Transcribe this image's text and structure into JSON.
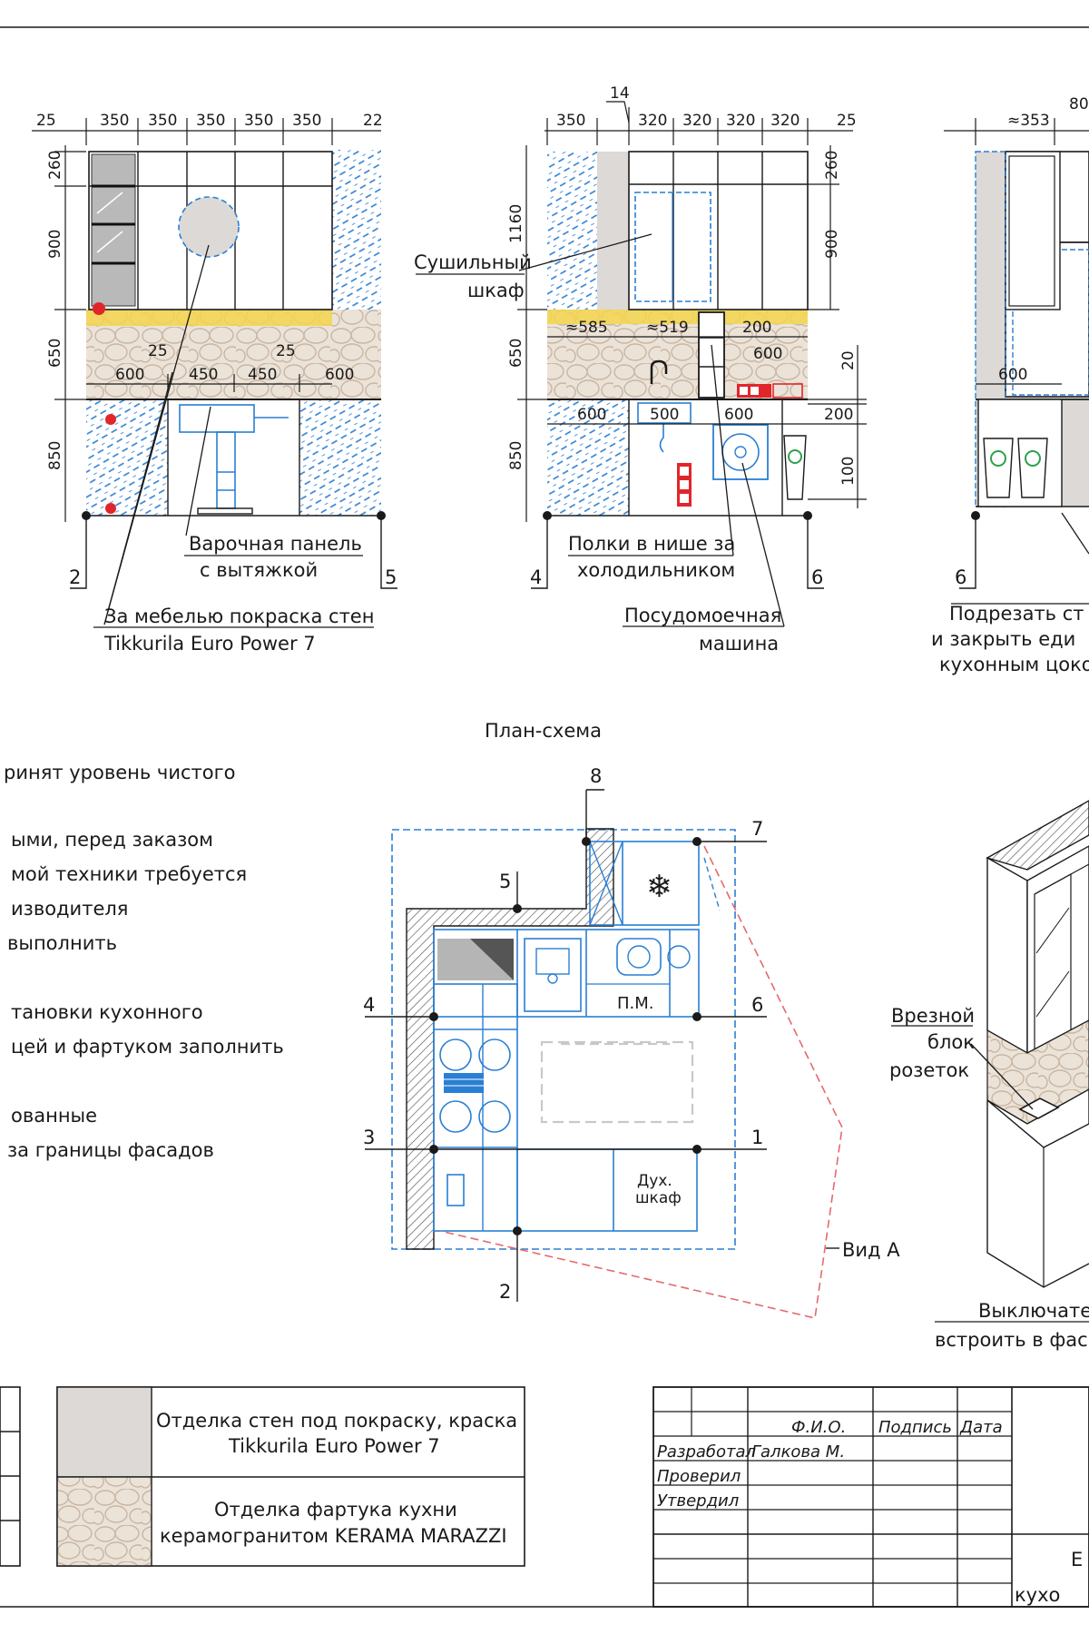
{
  "elevations": {
    "left": {
      "top_dims": [
        "25",
        "350",
        "350",
        "350",
        "350",
        "350",
        "22"
      ],
      "vert_dims": [
        "260",
        "900",
        "650",
        "850"
      ],
      "mid_dims_top": [
        "25",
        "25"
      ],
      "mid_dims": [
        "600",
        "450",
        "450",
        "600"
      ],
      "axis_left": "2",
      "axis_right": "5",
      "note_hob": [
        "Варочная панель",
        "с вытяжкой"
      ],
      "note_paint": [
        "За мебелью покраска стен",
        "Tikkurila Euro Power 7"
      ]
    },
    "middle": {
      "top_small": "14",
      "top_dims": [
        "350",
        "320",
        "320",
        "320",
        "320",
        "25"
      ],
      "left_vert": "1160",
      "vert_dims": [
        "650",
        "850"
      ],
      "right_vert": [
        "260",
        "900",
        "20",
        "100"
      ],
      "apron_dims": [
        "≈585",
        "≈519",
        "200",
        "600"
      ],
      "lower_dims": [
        "600",
        "500",
        "600",
        "200"
      ],
      "axis_left": "4",
      "axis_right": "6",
      "note_dryer": [
        "Сушильный",
        "шкаф"
      ],
      "note_shelves": [
        "Полки в нише за",
        "холодильником"
      ],
      "note_dishwasher": [
        "Посудомоечная",
        "машина"
      ]
    },
    "right": {
      "top_dims": [
        "≈353",
        "80"
      ],
      "lower_dim": "600",
      "axis_left": "6",
      "note_plinth": [
        "Подрезать ст",
        "и закрыть еди",
        "кухонным цоко"
      ]
    }
  },
  "plan": {
    "title": "План-схема",
    "axes": [
      "8",
      "7",
      "5",
      "4",
      "6",
      "3",
      "1",
      "2"
    ],
    "label_dw": "П.М.",
    "label_oven": [
      "Дух.",
      "шкаф"
    ],
    "view_label": "Вид А"
  },
  "notes": {
    "lines": [
      "ринят уровень чистого",
      "ыми, перед заказом",
      "мой техники требуется",
      "изводителя",
      "выполнить",
      "тановки кухонного",
      "цей и фартуком заполнить",
      "ованные",
      "за границы фасадов"
    ]
  },
  "iso": {
    "note_socket": [
      "Врезной",
      "блок",
      "розеток"
    ],
    "note_switch": [
      "Выключате",
      "встроить в фас"
    ]
  },
  "legend": {
    "paint": [
      "Отделка стен под покраску, краска",
      "Tikkurila Euro Power 7"
    ],
    "apron": [
      "Отделка фартука кухни",
      "керамогранитом KERAMA MARAZZI"
    ]
  },
  "title_block": {
    "col_name": "Ф.И.О.",
    "col_sign": "Подпись",
    "col_date": "Дата",
    "rows": [
      {
        "role": "Разработал",
        "name": "Галкова М."
      },
      {
        "role": "Проверил",
        "name": ""
      },
      {
        "role": "Утвердил",
        "name": ""
      }
    ],
    "big_fragment": "Е",
    "title_fragment": "кухо"
  },
  "colors": {
    "line": "#1a1a1a",
    "blue": "#2a7fd4",
    "red_dash": "#e46a6a",
    "paint_fill": "#dcd9d6",
    "apron_fill": "#ece3d8",
    "stone": "#c9b6a3",
    "yellow": "#f3d54e",
    "socket_red": "#e1262b"
  }
}
